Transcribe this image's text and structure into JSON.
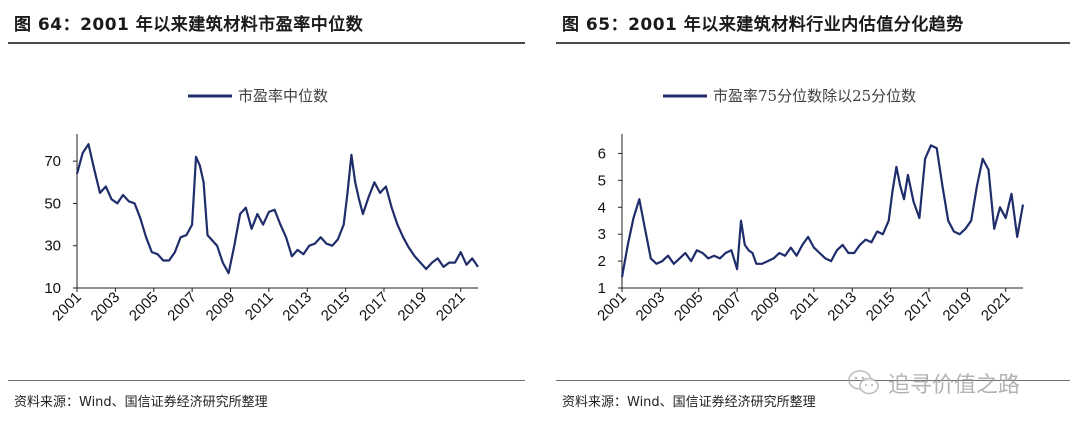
{
  "panels": [
    {
      "title": "图 64：2001 年以来建筑材料市盈率中位数",
      "source": "资料来源：Wind、国信证券经济研究所整理"
    },
    {
      "title": "图 65：2001 年以来建筑材料行业内估值分化趋势",
      "source": "资料来源：Wind、国信证券经济研究所整理"
    }
  ],
  "watermark": {
    "text": "追寻价值之路",
    "icon": "wechat-icon"
  },
  "chart_data": [
    {
      "type": "line",
      "legend_position": "top",
      "grid": false,
      "color": "#1F2D6B",
      "x_ticks": [
        "2001",
        "2003",
        "2005",
        "2007",
        "2009",
        "2011",
        "2013",
        "2015",
        "2017",
        "2019",
        "2021"
      ],
      "y_ticks": [
        10,
        30,
        50,
        70
      ],
      "xlim": [
        2001,
        2021.9
      ],
      "ylim": [
        10,
        80
      ],
      "series": [
        {
          "name": "市盈率中位数",
          "x": [
            2001.0,
            2001.3,
            2001.6,
            2001.9,
            2002.2,
            2002.5,
            2002.8,
            2003.1,
            2003.4,
            2003.7,
            2004.0,
            2004.3,
            2004.6,
            2004.9,
            2005.2,
            2005.5,
            2005.8,
            2006.1,
            2006.4,
            2006.7,
            2007.0,
            2007.2,
            2007.4,
            2007.6,
            2007.8,
            2008.0,
            2008.3,
            2008.6,
            2008.9,
            2009.2,
            2009.5,
            2009.8,
            2010.1,
            2010.4,
            2010.7,
            2011.0,
            2011.3,
            2011.6,
            2011.9,
            2012.2,
            2012.5,
            2012.8,
            2013.1,
            2013.4,
            2013.7,
            2014.0,
            2014.3,
            2014.6,
            2014.9,
            2015.1,
            2015.3,
            2015.5,
            2015.7,
            2015.9,
            2016.2,
            2016.5,
            2016.8,
            2017.1,
            2017.4,
            2017.7,
            2018.0,
            2018.3,
            2018.6,
            2018.9,
            2019.2,
            2019.5,
            2019.8,
            2020.1,
            2020.4,
            2020.7,
            2021.0,
            2021.3,
            2021.6,
            2021.9
          ],
          "values": [
            64,
            74,
            78,
            66,
            55,
            58,
            52,
            50,
            54,
            51,
            50,
            43,
            34,
            27,
            26,
            23,
            23,
            27,
            34,
            35,
            40,
            72,
            68,
            60,
            35,
            33,
            30,
            22,
            17,
            30,
            45,
            48,
            38,
            45,
            40,
            46,
            47,
            40,
            34,
            25,
            28,
            26,
            30,
            31,
            34,
            31,
            30,
            33,
            40,
            55,
            73,
            60,
            52,
            45,
            53,
            60,
            55,
            58,
            48,
            40,
            34,
            29,
            25,
            22,
            19,
            22,
            24,
            20,
            22,
            22,
            27,
            21,
            24,
            20
          ]
        }
      ]
    },
    {
      "type": "line",
      "legend_position": "top",
      "grid": false,
      "color": "#1F2D6B",
      "x_ticks": [
        "2001",
        "2003",
        "2005",
        "2007",
        "2009",
        "2011",
        "2013",
        "2015",
        "2017",
        "2019",
        "2021"
      ],
      "y_ticks": [
        1,
        2,
        3,
        4,
        5,
        6
      ],
      "xlim": [
        2001,
        2021.9
      ],
      "ylim": [
        1,
        6.5
      ],
      "series": [
        {
          "name": "市盈率75分位数除以25分位数",
          "x": [
            2001.0,
            2001.3,
            2001.6,
            2001.9,
            2002.2,
            2002.5,
            2002.8,
            2003.1,
            2003.4,
            2003.7,
            2004.0,
            2004.3,
            2004.6,
            2004.9,
            2005.2,
            2005.5,
            2005.8,
            2006.1,
            2006.4,
            2006.7,
            2007.0,
            2007.2,
            2007.4,
            2007.6,
            2007.8,
            2008.0,
            2008.3,
            2008.6,
            2008.9,
            2009.2,
            2009.5,
            2009.8,
            2010.1,
            2010.4,
            2010.7,
            2011.0,
            2011.3,
            2011.6,
            2011.9,
            2012.2,
            2012.5,
            2012.8,
            2013.1,
            2013.4,
            2013.7,
            2014.0,
            2014.3,
            2014.6,
            2014.9,
            2015.1,
            2015.3,
            2015.5,
            2015.7,
            2015.9,
            2016.2,
            2016.5,
            2016.8,
            2017.1,
            2017.4,
            2017.7,
            2018.0,
            2018.3,
            2018.6,
            2018.9,
            2019.2,
            2019.5,
            2019.8,
            2020.1,
            2020.4,
            2020.7,
            2021.0,
            2021.3,
            2021.6,
            2021.9
          ],
          "values": [
            1.4,
            2.6,
            3.6,
            4.3,
            3.2,
            2.1,
            1.9,
            2.0,
            2.2,
            1.9,
            2.1,
            2.3,
            2.0,
            2.4,
            2.3,
            2.1,
            2.2,
            2.1,
            2.3,
            2.4,
            1.7,
            3.5,
            2.6,
            2.4,
            2.3,
            1.9,
            1.9,
            2.0,
            2.1,
            2.3,
            2.2,
            2.5,
            2.2,
            2.6,
            2.9,
            2.5,
            2.3,
            2.1,
            2.0,
            2.4,
            2.6,
            2.3,
            2.3,
            2.6,
            2.8,
            2.7,
            3.1,
            3.0,
            3.5,
            4.6,
            5.5,
            4.8,
            4.3,
            5.2,
            4.2,
            3.6,
            5.8,
            6.3,
            6.2,
            4.8,
            3.5,
            3.1,
            3.0,
            3.2,
            3.5,
            4.8,
            5.8,
            5.4,
            3.2,
            4.0,
            3.6,
            4.5,
            2.9,
            4.1
          ]
        }
      ]
    }
  ]
}
